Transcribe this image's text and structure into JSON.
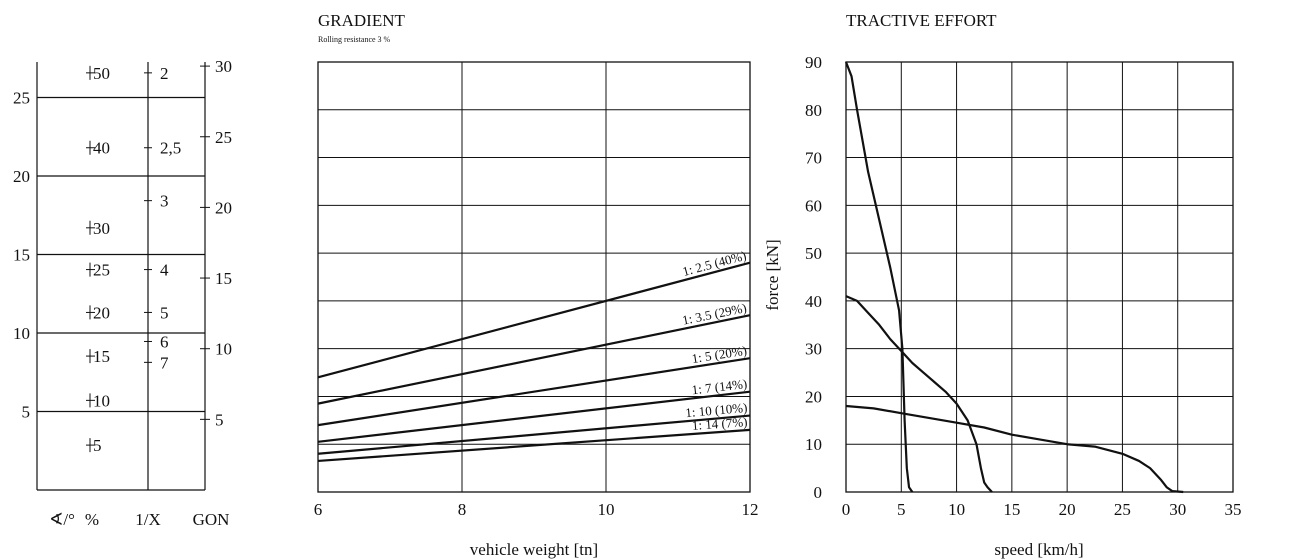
{
  "chart_data": [
    {
      "type": "nomogram",
      "columns": [
        {
          "label": "∢/°",
          "ticks": [
            "25",
            "20",
            "15",
            "10",
            "5"
          ]
        },
        {
          "label": "%",
          "ticks": [
            "50",
            "40",
            "30",
            "25",
            "20",
            "15",
            "10",
            "5"
          ]
        },
        {
          "label": "1/X",
          "ticks": [
            "2",
            "2,5",
            "3",
            "4",
            "5",
            "6",
            "7"
          ]
        },
        {
          "label": "GON",
          "ticks": [
            "30",
            "25",
            "20",
            "15",
            "10",
            "5"
          ]
        }
      ],
      "degree_lines": [
        25,
        20,
        15,
        10,
        5
      ],
      "percent_ticks": [
        {
          "label": "50",
          "deg": 26.57
        },
        {
          "label": "40",
          "deg": 21.8
        },
        {
          "label": "30",
          "deg": 16.7
        },
        {
          "label": "25",
          "deg": 14.04
        },
        {
          "label": "20",
          "deg": 11.31
        },
        {
          "label": "15",
          "deg": 8.53
        },
        {
          "label": "10",
          "deg": 5.71
        },
        {
          "label": "5",
          "deg": 2.86
        }
      ],
      "ratio_ticks": [
        {
          "label": "2",
          "deg": 26.57
        },
        {
          "label": "2,5",
          "deg": 21.8
        },
        {
          "label": "3",
          "deg": 18.43
        },
        {
          "label": "4",
          "deg": 14.04
        },
        {
          "label": "5",
          "deg": 11.31
        },
        {
          "label": "6",
          "deg": 9.46
        },
        {
          "label": "7",
          "deg": 8.13
        }
      ],
      "gon_ticks": [
        {
          "label": "30",
          "deg": 27
        },
        {
          "label": "25",
          "deg": 22.5
        },
        {
          "label": "20",
          "deg": 18
        },
        {
          "label": "15",
          "deg": 13.5
        },
        {
          "label": "10",
          "deg": 9
        },
        {
          "label": "5",
          "deg": 4.5
        }
      ]
    },
    {
      "type": "line",
      "title": "GRADIENT",
      "subtitle": "Rolling resistance 3 %",
      "xlabel": "vehicle weight [tn]",
      "ylabel": "",
      "xlim": [
        6,
        12
      ],
      "x_ticks": [
        "6",
        "8",
        "10",
        "12"
      ],
      "ylim": [
        0,
        9
      ],
      "grid": true,
      "series": [
        {
          "name": "1: 2.5 (40%)",
          "x": [
            6,
            12
          ],
          "y": [
            2.4,
            4.8
          ]
        },
        {
          "name": "1: 3.5 (29%)",
          "x": [
            6,
            12
          ],
          "y": [
            1.85,
            3.7
          ]
        },
        {
          "name": "1: 5 (20%)",
          "x": [
            6,
            12
          ],
          "y": [
            1.4,
            2.8
          ]
        },
        {
          "name": "1: 7 (14%)",
          "x": [
            6,
            12
          ],
          "y": [
            1.05,
            2.1
          ]
        },
        {
          "name": "1: 10 (10%)",
          "x": [
            6,
            12
          ],
          "y": [
            0.8,
            1.6
          ]
        },
        {
          "name": "1: 14 (7%)",
          "x": [
            6,
            12
          ],
          "y": [
            0.65,
            1.3
          ]
        }
      ]
    },
    {
      "type": "line",
      "title": "TRACTIVE EFFORT",
      "xlabel": "speed [km/h]",
      "ylabel": "force [kN]",
      "xlim": [
        0,
        35
      ],
      "ylim": [
        0,
        90
      ],
      "x_ticks": [
        "0",
        "5",
        "10",
        "15",
        "20",
        "25",
        "30",
        "35"
      ],
      "y_ticks": [
        "0",
        "10",
        "20",
        "30",
        "40",
        "50",
        "60",
        "70",
        "80",
        "90"
      ],
      "grid": true,
      "series": [
        {
          "x": [
            0,
            0.5,
            1,
            2,
            3,
            4,
            4.8,
            5.1,
            5.3,
            5.5,
            5.7,
            6
          ],
          "y": [
            90,
            87,
            80,
            67,
            57,
            47,
            38,
            30,
            15,
            5,
            1,
            0
          ]
        },
        {
          "x": [
            0,
            0.5,
            1,
            2,
            3,
            4,
            5,
            6,
            7,
            8,
            9,
            10,
            11,
            11.8,
            12.2,
            12.5,
            12.8,
            13.2
          ],
          "y": [
            41,
            40.5,
            40,
            37.5,
            35,
            32,
            29.5,
            27,
            25,
            23,
            21,
            18.5,
            15,
            10,
            5,
            2,
            1,
            0
          ]
        },
        {
          "x": [
            0,
            2.5,
            5,
            7.5,
            10,
            12.5,
            15,
            17.5,
            20,
            22.5,
            25,
            26.5,
            27.5,
            28.5,
            29,
            29.5,
            30.5
          ],
          "y": [
            18,
            17.5,
            16.5,
            15.5,
            14.5,
            13.5,
            12,
            11,
            10,
            9.5,
            8,
            6.5,
            5,
            2.5,
            1,
            0.2,
            0
          ]
        }
      ]
    }
  ]
}
